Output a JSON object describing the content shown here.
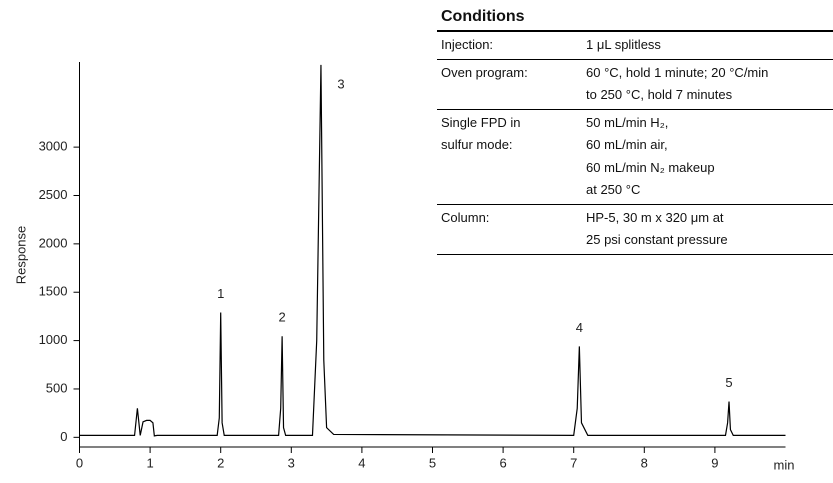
{
  "chart_data": {
    "type": "line",
    "y_label": "Response",
    "x_label": "min",
    "x": [
      0,
      0.78,
      0.82,
      0.86,
      0.9,
      0.95,
      1.0,
      1.04,
      1.06,
      1.1,
      1.95,
      1.98,
      2.0,
      2.02,
      2.05,
      2.82,
      2.85,
      2.87,
      2.89,
      2.92,
      3.3,
      3.36,
      3.42,
      3.46,
      3.5,
      3.6,
      7.0,
      7.05,
      7.08,
      7.11,
      7.2,
      9.15,
      9.18,
      9.2,
      9.22,
      9.26,
      10.0
    ],
    "values": [
      20,
      20,
      300,
      20,
      160,
      175,
      175,
      150,
      15,
      20,
      20,
      200,
      1290,
      150,
      20,
      20,
      300,
      1045,
      100,
      20,
      20,
      1000,
      3850,
      800,
      100,
      30,
      20,
      300,
      940,
      150,
      20,
      20,
      150,
      370,
      80,
      20,
      20
    ],
    "color": "#000000",
    "peaks": [
      {
        "label": "1",
        "x": 2.0,
        "y": 1290
      },
      {
        "label": "2",
        "x": 2.87,
        "y": 1045
      },
      {
        "label": "3",
        "x": 3.42,
        "y": 3850
      },
      {
        "label": "4",
        "x": 7.08,
        "y": 940
      },
      {
        "label": "5",
        "x": 9.2,
        "y": 370
      }
    ],
    "xlim": [
      0,
      10
    ],
    "xticks": [
      0,
      1,
      2,
      3,
      4,
      5,
      6,
      7,
      8,
      9
    ],
    "ylim": [
      -100,
      3880
    ],
    "yticks": [
      0,
      500,
      1000,
      1500,
      2000,
      2500,
      3000
    ]
  },
  "conditions": {
    "title": "Conditions",
    "rows": [
      {
        "label": [
          "Injection:"
        ],
        "value": [
          "1 μL splitless"
        ]
      },
      {
        "label": [
          "Oven program:"
        ],
        "value": [
          "60 °C, hold 1 minute; 20 °C/min",
          "to 250 °C, hold 7 minutes"
        ]
      },
      {
        "label": [
          "Single FPD in",
          "sulfur mode:"
        ],
        "value": [
          "50 mL/min H₂,",
          "60 mL/min air,",
          "60 mL/min N₂ makeup",
          "at 250 °C"
        ]
      },
      {
        "label": [
          "Column:"
        ],
        "value": [
          "HP-5, 30 m x 320 μm at",
          "25 psi constant pressure"
        ]
      }
    ]
  }
}
